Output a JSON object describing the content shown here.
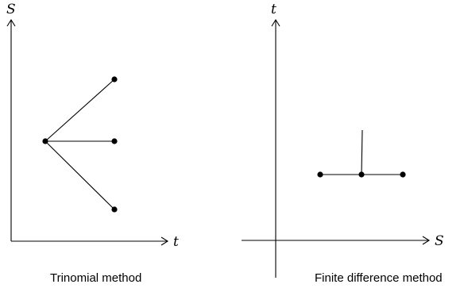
{
  "left_panel": {
    "y_axis_label": "S",
    "x_axis_label": "t",
    "caption": "Trinomial method"
  },
  "right_panel": {
    "y_axis_label": "t",
    "x_axis_label": "S",
    "caption": "Finite difference method"
  }
}
